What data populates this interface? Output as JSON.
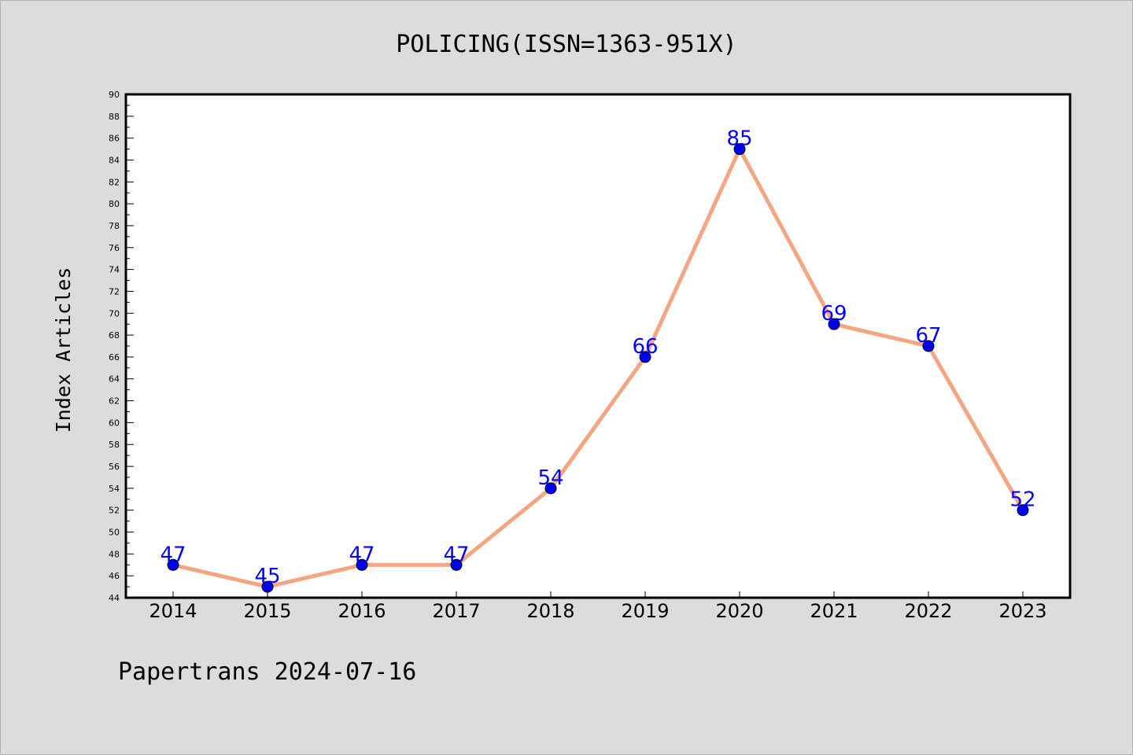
{
  "chart_data": {
    "type": "line",
    "title": "POLICING(ISSN=1363-951X)",
    "xlabel": "",
    "ylabel": "Index Articles",
    "categories": [
      "2014",
      "2015",
      "2016",
      "2017",
      "2018",
      "2019",
      "2020",
      "2021",
      "2022",
      "2023"
    ],
    "series": [
      {
        "values": [
          47,
          45,
          47,
          47,
          54,
          66,
          85,
          69,
          67,
          52
        ]
      }
    ],
    "ylim": [
      44,
      90
    ],
    "y_major_step": 2,
    "y_minor_step": 1,
    "grid": false,
    "data_labels": true,
    "colors": {
      "line": "#f4a582",
      "marker": "#0000ff",
      "label": "#0000ff",
      "background": "#dcdcdc",
      "plot_background": "#ffffff"
    }
  },
  "footer": {
    "text": "Papertrans 2024-07-16"
  }
}
